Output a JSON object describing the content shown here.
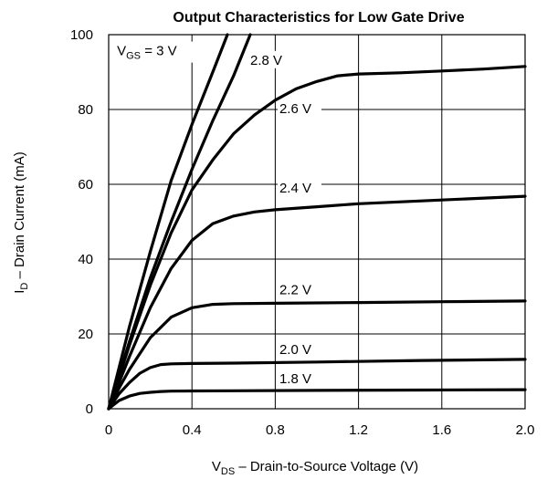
{
  "chart_data": {
    "type": "line",
    "title": "Output Characteristics for Low Gate Drive",
    "xlabel": {
      "main": "V",
      "sub": "DS",
      "rest": " –  Drain-to-Source Voltage (V)"
    },
    "ylabel": {
      "main": "I",
      "sub": "D",
      "rest": " – Drain Current (mA)"
    },
    "xlim": [
      0,
      2.0
    ],
    "ylim": [
      0,
      100
    ],
    "xticks": [
      "0",
      "0.4",
      "0.8",
      "1.2",
      "1.6",
      "2.0"
    ],
    "yticks": [
      "0",
      "20",
      "40",
      "60",
      "80",
      "100"
    ],
    "grid": true,
    "series": [
      {
        "name": "1.8 V",
        "label": "1.8 V",
        "x": [
          0,
          0.05,
          0.1,
          0.15,
          0.2,
          0.25,
          0.3,
          0.4,
          0.6,
          1.0,
          1.5,
          2.0
        ],
        "y": [
          0,
          2.2,
          3.4,
          4.1,
          4.4,
          4.6,
          4.7,
          4.75,
          4.8,
          4.9,
          5.0,
          5.1
        ]
      },
      {
        "name": "2.0 V",
        "label": "2.0 V",
        "x": [
          0,
          0.05,
          0.1,
          0.15,
          0.2,
          0.25,
          0.3,
          0.4,
          0.6,
          1.0,
          1.5,
          2.0
        ],
        "y": [
          0,
          4.0,
          7.0,
          9.5,
          11.0,
          11.8,
          12.0,
          12.1,
          12.2,
          12.5,
          12.9,
          13.2
        ]
      },
      {
        "name": "2.2 V",
        "label": "2.2 V",
        "x": [
          0,
          0.05,
          0.1,
          0.2,
          0.3,
          0.4,
          0.5,
          0.6,
          0.8,
          1.2,
          1.6,
          2.0
        ],
        "y": [
          0,
          5.5,
          10.5,
          19.0,
          24.5,
          27.0,
          27.9,
          28.1,
          28.2,
          28.4,
          28.6,
          28.8
        ]
      },
      {
        "name": "2.4 V",
        "label": "2.4 V",
        "x": [
          0,
          0.1,
          0.2,
          0.3,
          0.4,
          0.5,
          0.6,
          0.7,
          0.8,
          1.0,
          1.2,
          1.6,
          2.0
        ],
        "y": [
          0,
          14.0,
          27.0,
          37.5,
          45.0,
          49.5,
          51.5,
          52.6,
          53.2,
          54.0,
          54.8,
          55.8,
          56.8
        ]
      },
      {
        "name": "2.6 V",
        "label": "2.6 V",
        "x": [
          0,
          0.1,
          0.2,
          0.3,
          0.4,
          0.5,
          0.6,
          0.7,
          0.8,
          0.9,
          1.0,
          1.1,
          1.2,
          1.4,
          1.6,
          1.8,
          2.0
        ],
        "y": [
          0,
          17.0,
          33.0,
          47.0,
          58.5,
          66.5,
          73.5,
          78.5,
          82.5,
          85.5,
          87.5,
          89.0,
          89.5,
          89.8,
          90.3,
          90.8,
          91.5
        ]
      },
      {
        "name": "2.8 V",
        "label": "2.8 V",
        "x": [
          0,
          0.1,
          0.2,
          0.3,
          0.4,
          0.5,
          0.6,
          0.68
        ],
        "y": [
          0,
          18.0,
          35.0,
          50.0,
          64.0,
          77.0,
          89.0,
          100.0
        ]
      },
      {
        "name": "V_GS = 3 V",
        "label_main": "V",
        "label_sub": "GS",
        "label_rest": " = 3 V",
        "x": [
          0,
          0.1,
          0.2,
          0.3,
          0.4,
          0.5,
          0.57
        ],
        "y": [
          0,
          22.0,
          42.0,
          61.0,
          76.0,
          90.0,
          100.0
        ]
      }
    ]
  }
}
